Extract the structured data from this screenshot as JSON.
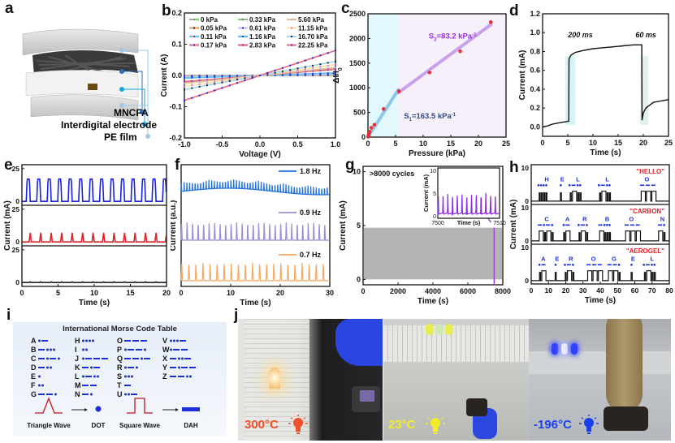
{
  "panels": {
    "a": {
      "label": "a",
      "layers": [
        "MNCFA",
        "Interdigital electrode",
        "PE film"
      ],
      "colors": {
        "MNCFA": "#2a6fb8",
        "Interdigital electrode": "#15a5e0",
        "PE film": "#9ec8ea"
      }
    },
    "b": {
      "label": "b"
    },
    "c": {
      "label": "c"
    },
    "d": {
      "label": "d"
    },
    "e": {
      "label": "e"
    },
    "f": {
      "label": "f"
    },
    "g": {
      "label": "g"
    },
    "h": {
      "label": "h"
    },
    "i": {
      "label": "i",
      "title": "International Morse Code Table",
      "codes": [
        [
          "A",
          ".-"
        ],
        [
          "B",
          "-..."
        ],
        [
          "C",
          "-.-."
        ],
        [
          "D",
          "-.."
        ],
        [
          "E",
          "."
        ],
        [
          "F",
          ".."
        ],
        [
          "G",
          "--."
        ],
        [
          "H",
          "...."
        ],
        [
          "I",
          ".."
        ],
        [
          "J",
          ".---"
        ],
        [
          "K",
          "-.-"
        ],
        [
          "L",
          ".-.."
        ],
        [
          "M",
          "--"
        ],
        [
          "N",
          "-."
        ],
        [
          "O",
          "---"
        ],
        [
          "P",
          ".--."
        ],
        [
          "Q",
          "--.-"
        ],
        [
          "R",
          ".-."
        ],
        [
          "S",
          "..."
        ],
        [
          "T",
          "-"
        ],
        [
          "U",
          "..-"
        ],
        [
          "V",
          "...-"
        ],
        [
          "W",
          ".--"
        ],
        [
          "X",
          "-..-"
        ],
        [
          "Y",
          "-.--"
        ],
        [
          "Z",
          "--.."
        ]
      ],
      "triangle_label": "Triangle Wave",
      "dot_label": "DOT",
      "square_label": "Square Wave",
      "dah_label": "DAH",
      "symbol_color": "#1a2fd6",
      "wave_color": "#c0141c"
    },
    "j": {
      "label": "j",
      "photos": [
        {
          "temp": "300°C",
          "color": "#f0502a"
        },
        {
          "temp": "23°C",
          "color": "#f2ec2a"
        },
        {
          "temp": "-196°C",
          "color": "#1a3ff0"
        }
      ]
    }
  },
  "chart_data": [
    {
      "id": "b",
      "type": "line",
      "xlabel": "Voltage (V)",
      "ylabel": "Current (A)",
      "xlim": [
        -1.0,
        1.0
      ],
      "ylim": [
        -0.2,
        0.2
      ],
      "xticks": [
        "-1.0",
        "-0.5",
        "0.0",
        "0.5",
        "1.0"
      ],
      "yticks": [
        "-0.2",
        "-0.1",
        "0.0",
        "0.1",
        "0.2"
      ],
      "x": [
        -1.0,
        -0.9,
        -0.8,
        -0.7,
        -0.6,
        -0.5,
        -0.4,
        -0.3,
        -0.2,
        -0.1,
        0.0,
        0.1,
        0.2,
        0.3,
        0.4,
        0.5,
        0.6,
        0.7,
        0.8,
        0.9,
        1.0
      ],
      "legend": "top",
      "series": [
        {
          "name": "0 kPa",
          "slope": 0.0,
          "color": "#7ad07a",
          "marker": "#d24fd2"
        },
        {
          "name": "0.05 kPa",
          "slope": 0.0005,
          "color": "#f0a060",
          "marker": "#222222"
        },
        {
          "name": "0.11 kPa",
          "slope": 0.001,
          "color": "#60c8f0",
          "marker": "#e02020"
        },
        {
          "name": "0.17 kPa",
          "slope": 0.0015,
          "color": "#f07080",
          "marker": "#2020e0"
        },
        {
          "name": "0.33 kPa",
          "slope": 0.002,
          "color": "#70d070",
          "marker": "#d040d0"
        },
        {
          "name": "0.61 kPa",
          "slope": 0.003,
          "color": "#c8c0e8",
          "marker": "#2020c0"
        },
        {
          "name": "1.16 kPa",
          "slope": 0.008,
          "color": "#60c0f0",
          "marker": "#2040e0"
        },
        {
          "name": "2.83 kPa",
          "slope": 0.02,
          "color": "#f06070",
          "marker": "#8020c0"
        },
        {
          "name": "5.60 kPa",
          "slope": 0.025,
          "color": "#e0c0a0",
          "marker": "#b0b0b0"
        },
        {
          "name": "11.15 kPa",
          "slope": 0.035,
          "color": "#f8e8a0",
          "marker": "#f060f0"
        },
        {
          "name": "16.70 kPa",
          "slope": 0.045,
          "color": "#a0d8f0",
          "marker": "#222222"
        },
        {
          "name": "22.25 kPa",
          "slope": 0.08,
          "color": "#f07080",
          "marker": "#2020e0"
        }
      ]
    },
    {
      "id": "c",
      "type": "scatter",
      "xlabel": "Pressure (kPa)",
      "ylabel": "ΔI/I0",
      "xlim": [
        0,
        25
      ],
      "ylim": [
        0,
        2500
      ],
      "xticks": [
        "0",
        "5",
        "10",
        "15",
        "20",
        "25"
      ],
      "yticks": [
        "0",
        "500",
        "1000",
        "1500",
        "2000",
        "2500"
      ],
      "points": [
        [
          0.05,
          10
        ],
        [
          0.11,
          40
        ],
        [
          0.17,
          70
        ],
        [
          0.33,
          110
        ],
        [
          0.61,
          190
        ],
        [
          1.16,
          250
        ],
        [
          2.83,
          570
        ],
        [
          5.6,
          930
        ],
        [
          11.15,
          1310
        ],
        [
          16.7,
          1740
        ],
        [
          22.25,
          2330
        ]
      ],
      "fits": [
        {
          "label": "S1=163.5 kPa-1",
          "from": [
            0,
            0
          ],
          "to": [
            5.5,
            960
          ],
          "color": "#8cc8ec"
        },
        {
          "label": "S2=83.2 kPa-1",
          "from": [
            5.5,
            900
          ],
          "to": [
            22.25,
            2280
          ],
          "color": "#c8a0ec"
        }
      ],
      "regions": [
        {
          "from": 0,
          "to": 5.5,
          "color": "#e3f8fc"
        },
        {
          "from": 5.5,
          "to": 25,
          "color": "#f6f0fa"
        }
      ],
      "annotations": {
        "s1": "S",
        "s1_sub": "1",
        "s1_rest": "=163.5 kPa",
        "s1_sup": "-1",
        "s2": "S",
        "s2_sub": "2",
        "s2_rest": "=83.2 kPa",
        "s2_sup": "-1"
      },
      "point_color": "#e8303a"
    },
    {
      "id": "d",
      "type": "line",
      "xlabel": "Time (s)",
      "ylabel": "Current (mA)",
      "xlim": [
        0,
        25
      ],
      "ylim": [
        -0.1,
        1.2
      ],
      "xticks": [
        "0",
        "5",
        "10",
        "15",
        "20",
        "25"
      ],
      "yticks": [
        "0.0",
        "0.2",
        "0.4",
        "0.6",
        "0.8",
        "1.0",
        "1.2"
      ],
      "annotations": [
        "200 ms",
        "60 ms"
      ],
      "points": [
        [
          0,
          0.0
        ],
        [
          1,
          0.01
        ],
        [
          2,
          0.03
        ],
        [
          3,
          0.04
        ],
        [
          4,
          0.05
        ],
        [
          5.2,
          0.06
        ],
        [
          5.25,
          0.72
        ],
        [
          5.6,
          0.76
        ],
        [
          6.5,
          0.79
        ],
        [
          8,
          0.81
        ],
        [
          10,
          0.83
        ],
        [
          12,
          0.84
        ],
        [
          14,
          0.85
        ],
        [
          16,
          0.86
        ],
        [
          18,
          0.87
        ],
        [
          19.7,
          0.87
        ],
        [
          19.75,
          0.07
        ],
        [
          20,
          0.15
        ],
        [
          20.5,
          0.2
        ],
        [
          21,
          0.22
        ],
        [
          22,
          0.26
        ],
        [
          23,
          0.27
        ],
        [
          24,
          0.28
        ],
        [
          25,
          0.29
        ]
      ],
      "regions": [
        {
          "from": 4.5,
          "to": 6.5,
          "color": "#d6f4f8"
        },
        {
          "from": 19.4,
          "to": 21,
          "color": "#e2f2e8"
        }
      ]
    },
    {
      "id": "e",
      "type": "line",
      "xlabel": "Time (s)",
      "ylabel": "Current (mA)",
      "xlim": [
        0,
        20
      ],
      "xticks": [
        "0",
        "5",
        "10",
        "15",
        "20"
      ],
      "subplots": [
        {
          "color": "#1a22e0",
          "ylim": [
            0,
            25
          ],
          "yticks": [
            "0",
            "25"
          ],
          "peak": 17,
          "period": 1.45,
          "start": 0.6,
          "shape": "square"
        },
        {
          "color": "#e0202a",
          "ylim": [
            0,
            25
          ],
          "yticks": [
            "0",
            "25"
          ],
          "peak": 7,
          "period": 1.45,
          "start": 1.0,
          "shape": "spike"
        },
        {
          "color": "#222222",
          "ylim": [
            0,
            25
          ],
          "yticks": [
            "0",
            "25"
          ],
          "peak": 0.5,
          "period": 1.45,
          "start": 1.0,
          "shape": "spike"
        }
      ]
    },
    {
      "id": "f",
      "type": "line",
      "xlabel": "Time (s)",
      "ylabel": "Current (a.u.)",
      "xlim": [
        0,
        30
      ],
      "xticks": [
        "0",
        "10",
        "20",
        "30"
      ],
      "series": [
        {
          "name": "1.8 Hz",
          "freq": 1.8,
          "color": "#1f6fe0"
        },
        {
          "name": "0.9 Hz",
          "freq": 0.9,
          "color": "#9c8cd8"
        },
        {
          "name": "0.7 Hz",
          "freq": 0.7,
          "color": "#f4a860"
        }
      ]
    },
    {
      "id": "g",
      "type": "area",
      "xlabel": "Time (s)",
      "ylabel": "Current (mA)",
      "xlim": [
        0,
        8000
      ],
      "ylim": [
        -0.5,
        10.5
      ],
      "xticks": [
        "0",
        "2000",
        "4000",
        "6000",
        "8000"
      ],
      "yticks": [
        "0",
        "5",
        "10"
      ],
      "band": [
        0,
        4.8
      ],
      "band_color": "#b4b4b4",
      "annotation": ">8000 cycles",
      "marker_x": 7505,
      "marker_color": "#a040e0",
      "inset": {
        "xlabel": "Time (s)",
        "ylabel": "Current (mA)",
        "xlim": [
          7500,
          7510
        ],
        "ylim": [
          0,
          10
        ],
        "xticks": [
          "7500",
          "7510"
        ],
        "yticks": [
          "0",
          "5",
          "10"
        ],
        "peak": 4.7,
        "cycles": 13,
        "color": "#8a2be2"
      }
    },
    {
      "id": "h",
      "type": "line",
      "xlabel": "Time (s)",
      "ylabel": "Current (mA)",
      "xlim": [
        0,
        80
      ],
      "xticks": [
        "0",
        "10",
        "20",
        "30",
        "40",
        "50",
        "60",
        "70",
        "80"
      ],
      "subplots": [
        {
          "word": "\"HELLO\"",
          "ylim": [
            0,
            10
          ],
          "yticks": [
            "0",
            "10"
          ],
          "letters": [
            {
              "ch": "H",
              "x": 9,
              "code": "...."
            },
            {
              "ch": "E",
              "x": 18,
              "code": "."
            },
            {
              "ch": "L",
              "x": 27,
              "code": ".-.."
            },
            {
              "ch": "L",
              "x": 44,
              "code": ".-.."
            },
            {
              "ch": "O",
              "x": 67,
              "code": "---"
            }
          ]
        },
        {
          "word": "\"CARBON\"",
          "ylim": [
            0,
            10
          ],
          "yticks": [
            "0",
            "10"
          ],
          "letters": [
            {
              "ch": "C",
              "x": 9,
              "code": "-.-."
            },
            {
              "ch": "A",
              "x": 21,
              "code": ".-"
            },
            {
              "ch": "R",
              "x": 31,
              "code": ".-."
            },
            {
              "ch": "B",
              "x": 44,
              "code": "-..."
            },
            {
              "ch": "O",
              "x": 58,
              "code": "---"
            },
            {
              "ch": "N",
              "x": 76,
              "code": "-."
            }
          ]
        },
        {
          "word": "\"AEROGEL\"",
          "ylim": [
            0,
            10
          ],
          "yticks": [
            "0",
            "10"
          ],
          "letters": [
            {
              "ch": "A",
              "x": 7,
              "code": ".-"
            },
            {
              "ch": "E",
              "x": 15,
              "code": "."
            },
            {
              "ch": "R",
              "x": 23,
              "code": ".-."
            },
            {
              "ch": "O",
              "x": 36,
              "code": "---"
            },
            {
              "ch": "G",
              "x": 48,
              "code": "--."
            },
            {
              "ch": "E",
              "x": 59,
              "code": "."
            },
            {
              "ch": "L",
              "x": 70,
              "code": ".-.."
            }
          ]
        }
      ],
      "word_color": "#e8202a",
      "code_color": "#1a2fd6"
    }
  ]
}
